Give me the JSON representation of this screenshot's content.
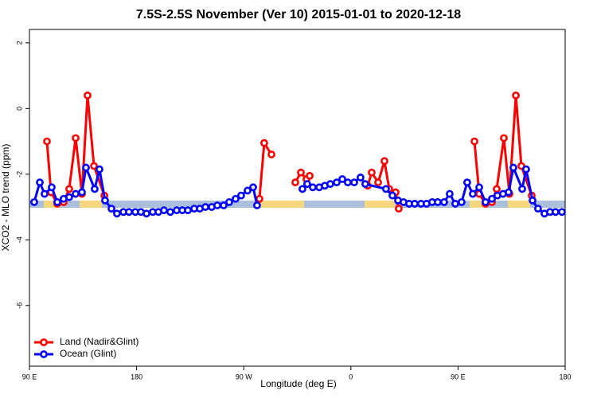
{
  "chart_data": {
    "type": "line",
    "title": "7.5S-2.5S November (Ver 10)   2015-01-01 to 2020-12-18",
    "xlabel": "Longitude (deg E)",
    "ylabel": "XCO2 - MLO trend (ppm)",
    "xlim": [
      90,
      540
    ],
    "ylim": [
      -7.85,
      2.41
    ],
    "xticks": [
      {
        "value": 90,
        "label": "90 E"
      },
      180,
      {
        "value": 270,
        "label": "90 W"
      },
      {
        "value": 360,
        "label": "0"
      },
      {
        "value": 450,
        "label": "90 E"
      },
      {
        "value": 540,
        "label": "180"
      }
    ],
    "yticks": [
      2,
      0,
      -2,
      -4,
      -6
    ],
    "legend": "bottomleft",
    "series": [
      {
        "name": "Land (Nadir&Glint)",
        "color": "#ff0000",
        "x": [
          104.7,
          108.1,
          113.4,
          118.8,
          123.4,
          128.8,
          134.1,
          138.8,
          144.2,
          152.9,
          220,
          283.2,
          287.2,
          293.3,
          305,
          313.3,
          318.0,
          322.7,
          325.4,
          350,
          374.2,
          377.5,
          382.9,
          388.2,
          392.2,
          397.6,
          400.2,
          430,
          463.8,
          467.8,
          473.1,
          478.5,
          482.5,
          488.5,
          493.2,
          498.6,
          503.2,
          511.9
        ],
        "values": [
          -1.0,
          -2.55,
          -2.9,
          -2.85,
          -2.45,
          -0.9,
          -2.6,
          0.4,
          -1.75,
          -2.65,
          null,
          -2.75,
          -1.05,
          -1.4,
          null,
          -2.25,
          -1.95,
          -2.15,
          -2.05,
          null,
          -2.35,
          -1.95,
          -2.25,
          -1.6,
          -2.45,
          -2.55,
          -3.05,
          null,
          -1.0,
          -2.6,
          -2.9,
          -2.85,
          -2.45,
          -0.9,
          -2.6,
          0.4,
          -1.75,
          -2.65
        ]
      },
      {
        "name": "Ocean (Glint)",
        "color": "#0000ff",
        "x": [
          94.0,
          98.7,
          102.7,
          108.7,
          113.4,
          118.7,
          123.4,
          128.8,
          134.1,
          137.5,
          144.8,
          148.8,
          153.5,
          158.9,
          163.5,
          168.9,
          173.6,
          178.9,
          183.6,
          188.3,
          193.6,
          198.3,
          203.0,
          208.3,
          213.7,
          218.4,
          223.1,
          228.4,
          233.1,
          237.8,
          243.1,
          247.8,
          253.1,
          257.8,
          263.2,
          267.8,
          273.2,
          277.9,
          281.2,
          300,
          319.3,
          323.3,
          328.0,
          333.4,
          338.1,
          342.7,
          348.1,
          352.8,
          357.4,
          362.8,
          368.1,
          372.1,
          389.5,
          394.9,
          399.6,
          404.2,
          408.9,
          413.6,
          418.9,
          423.6,
          428.3,
          433.0,
          438.3,
          443.0,
          447.7,
          453.0,
          457.7,
          462.4,
          467.8,
          473.1,
          478.5,
          483.1,
          487.8,
          492.5,
          496.5,
          503.9,
          507.2,
          512.6,
          517.2,
          522.6,
          527.3,
          531.9,
          537.3
        ],
        "values": [
          -2.85,
          -2.25,
          -2.6,
          -2.4,
          -2.85,
          -2.75,
          -2.7,
          -2.6,
          -2.55,
          -1.8,
          -2.45,
          -1.85,
          -2.8,
          -3.05,
          -3.2,
          -3.15,
          -3.15,
          -3.15,
          -3.15,
          -3.2,
          -3.15,
          -3.15,
          -3.1,
          -3.15,
          -3.1,
          -3.1,
          -3.1,
          -3.05,
          -3.05,
          -3.0,
          -3.0,
          -2.95,
          -2.95,
          -2.85,
          -2.75,
          -2.65,
          -2.5,
          -2.4,
          -2.95,
          null,
          -2.45,
          -2.3,
          -2.4,
          -2.4,
          -2.35,
          -2.3,
          -2.25,
          -2.15,
          -2.25,
          -2.25,
          -2.1,
          -2.3,
          -2.45,
          -2.65,
          -2.8,
          -2.85,
          -2.9,
          -2.9,
          -2.9,
          -2.9,
          -2.85,
          -2.85,
          -2.85,
          -2.6,
          -2.9,
          -2.85,
          -2.25,
          -2.6,
          -2.4,
          -2.85,
          -2.75,
          -2.65,
          -2.6,
          -2.55,
          -1.8,
          -2.45,
          -1.85,
          -2.8,
          -3.05,
          -3.2,
          -3.15,
          -3.15,
          -3.15
        ]
      }
    ]
  }
}
